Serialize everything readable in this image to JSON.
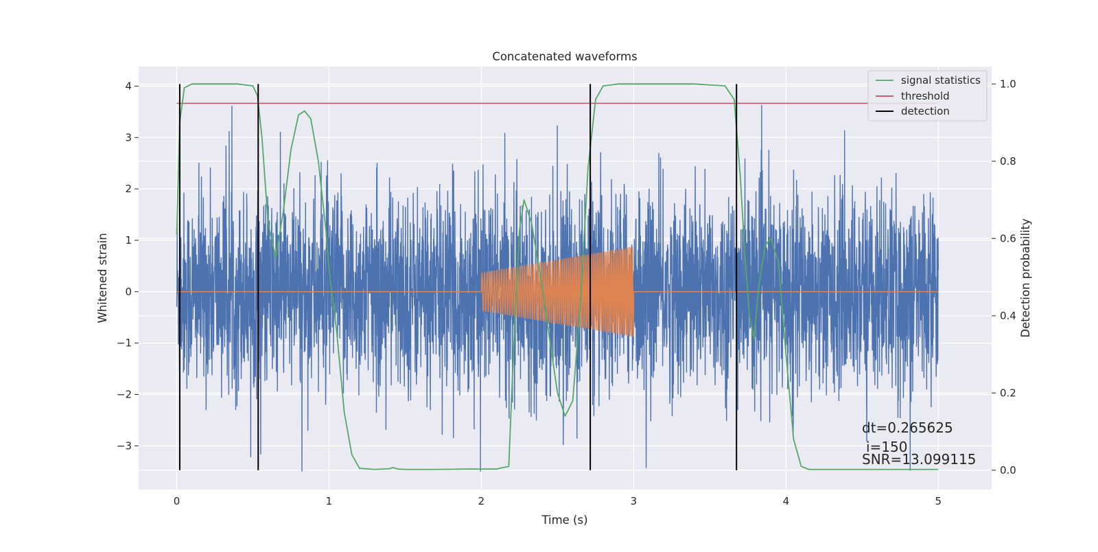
{
  "chart_data": {
    "type": "line",
    "title": "Concatenated waveforms",
    "xlabel": "Time (s)",
    "ylabel": "Whitened strain",
    "ylabel_right": "Detection probability",
    "xlim": [
      -0.25,
      5.35
    ],
    "ylim": [
      -3.85,
      4.38
    ],
    "ylim_right": [
      -0.05,
      1.045
    ],
    "x_ticks": [
      0,
      1,
      2,
      3,
      4,
      5
    ],
    "x_tick_labels": [
      "0",
      "1",
      "2",
      "3",
      "4",
      "5"
    ],
    "y_ticks": [
      -3,
      -2,
      -1,
      0,
      1,
      2,
      3,
      4
    ],
    "y_tick_labels": [
      "−3",
      "−2",
      "−1",
      "0",
      "1",
      "2",
      "3",
      "4"
    ],
    "y_right_ticks": [
      0.0,
      0.2,
      0.4,
      0.6,
      0.8,
      1.0
    ],
    "y_right_tick_labels": [
      "0.0",
      "0.2",
      "0.4",
      "0.6",
      "0.8",
      "1.0"
    ],
    "grid": true,
    "legend_position": "upper-right",
    "colors": {
      "background": "#eaeaf2",
      "grid": "#ffffff",
      "strain": "#4c72b0",
      "injection": "#dd8452",
      "signal_statistics": "#55a868",
      "threshold": "#c44e52",
      "detection": "#000000"
    },
    "series": [
      {
        "name": "",
        "role": "whitened-strain",
        "axis": "left",
        "note": "dense noise, roughly symmetric, std ~0.9 around 0, spikes to about ±4",
        "x_range": [
          0,
          5
        ],
        "center": 0,
        "peak": 4.0
      },
      {
        "name": "",
        "role": "injected-chirp",
        "axis": "left",
        "x_range": [
          2.0,
          3.0
        ],
        "amplitude_start": 0.37,
        "amplitude_end": 0.88
      },
      {
        "name": "signal statistics",
        "axis": "right",
        "x": [
          0.0,
          0.02,
          0.05,
          0.1,
          0.2,
          0.3,
          0.4,
          0.5,
          0.53,
          0.56,
          0.6,
          0.65,
          0.7,
          0.75,
          0.8,
          0.84,
          0.88,
          0.93,
          0.98,
          1.0,
          1.05,
          1.1,
          1.15,
          1.2,
          1.3,
          1.4,
          1.42,
          1.45,
          1.5,
          1.7,
          1.9,
          2.1,
          2.18,
          2.21,
          2.25,
          2.28,
          2.33,
          2.4,
          2.5,
          2.55,
          2.6,
          2.65,
          2.7,
          2.75,
          2.8,
          2.9,
          3.0,
          3.2,
          3.4,
          3.6,
          3.66,
          3.7,
          3.73,
          3.76,
          3.79,
          3.82,
          3.86,
          3.9,
          3.95,
          4.0,
          4.05,
          4.1,
          4.15,
          4.3,
          4.6,
          5.0
        ],
        "y": [
          0.61,
          0.9,
          0.99,
          1.0,
          1.0,
          1.0,
          1.0,
          0.995,
          0.97,
          0.86,
          0.64,
          0.55,
          0.67,
          0.83,
          0.92,
          0.93,
          0.91,
          0.8,
          0.62,
          0.52,
          0.36,
          0.15,
          0.04,
          0.005,
          0.002,
          0.004,
          0.007,
          0.003,
          0.002,
          0.002,
          0.003,
          0.003,
          0.01,
          0.3,
          0.62,
          0.7,
          0.64,
          0.47,
          0.2,
          0.14,
          0.18,
          0.43,
          0.78,
          0.96,
          0.995,
          1.0,
          1.0,
          1.0,
          1.0,
          0.995,
          0.96,
          0.76,
          0.56,
          0.4,
          0.34,
          0.47,
          0.58,
          0.6,
          0.54,
          0.3,
          0.08,
          0.01,
          0.002,
          0.002,
          0.002,
          0.002
        ]
      },
      {
        "name": "threshold",
        "axis": "right",
        "x": [
          0,
          5
        ],
        "y": [
          0.95,
          0.95
        ]
      },
      {
        "name": "detection",
        "axis": "right",
        "type": "vlines",
        "x": [
          0.02,
          0.535,
          2.715,
          3.675
        ],
        "y_range": [
          0.0,
          1.0
        ]
      }
    ],
    "annotations": [
      "dt=0.265625",
      "i=150",
      "SNR=13.099115"
    ]
  }
}
